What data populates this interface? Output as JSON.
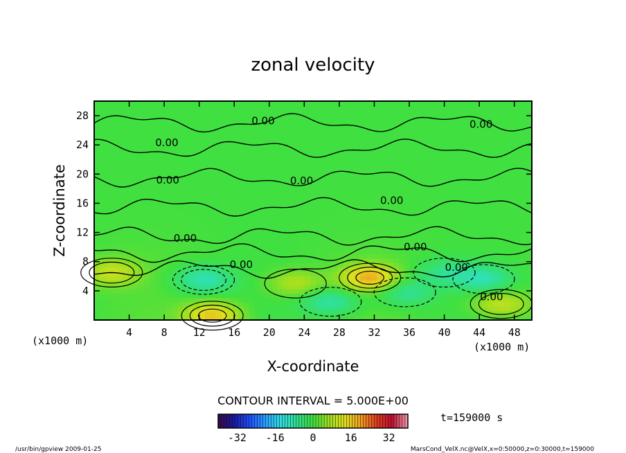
{
  "chart_data": {
    "type": "heatmap",
    "title": "zonal velocity",
    "xlabel": "X-coordinate",
    "ylabel": "Z-coordinate",
    "x_unit": "(x1000 m)",
    "y_unit": "(x1000 m)",
    "x_ticks": [
      4,
      8,
      12,
      16,
      20,
      24,
      28,
      32,
      36,
      40,
      44,
      48
    ],
    "y_ticks": [
      4,
      8,
      12,
      16,
      20,
      24,
      28
    ],
    "xlim": [
      0,
      50
    ],
    "ylim": [
      0,
      30
    ],
    "contour_interval_text": "CONTOUR INTERVAL = 5.000E+00",
    "contour_label": "0.00",
    "contour_labels": [
      {
        "x": 19.3,
        "y": 27.3
      },
      {
        "x": 44.2,
        "y": 26.8
      },
      {
        "x": 8.3,
        "y": 24.3
      },
      {
        "x": 8.4,
        "y": 19.2
      },
      {
        "x": 23.7,
        "y": 19.1
      },
      {
        "x": 34.0,
        "y": 16.4
      },
      {
        "x": 10.4,
        "y": 11.2
      },
      {
        "x": 36.7,
        "y": 10.0
      },
      {
        "x": 16.8,
        "y": 7.6
      },
      {
        "x": 41.4,
        "y": 7.2
      },
      {
        "x": 45.4,
        "y": 3.2
      }
    ],
    "time_label": "t=159000 s",
    "colorbar": {
      "min": -40,
      "max": 40,
      "tick_labels": [
        "-32",
        "-16",
        "0",
        "16",
        "32"
      ],
      "tick_values": [
        -32,
        -16,
        0,
        16,
        32
      ],
      "colors": [
        "#3a0a4a",
        "#1a1aa0",
        "#2050ff",
        "#2aa0ff",
        "#30e0e0",
        "#30e090",
        "#40e040",
        "#a0e020",
        "#e0e020",
        "#f0a020",
        "#e04020",
        "#c01030",
        "#f0a0b0"
      ]
    },
    "features": [
      {
        "kind": "positive",
        "x": 31.5,
        "y": 5.8,
        "value": 18
      },
      {
        "kind": "positive",
        "x": 13.5,
        "y": 0.6,
        "value": 16
      },
      {
        "kind": "positive",
        "x": 2.0,
        "y": 6.5,
        "value": 10
      },
      {
        "kind": "positive",
        "x": 23.0,
        "y": 5.0,
        "value": 8
      },
      {
        "kind": "positive",
        "x": 46.5,
        "y": 2.2,
        "value": 10
      },
      {
        "kind": "negative",
        "x": 12.5,
        "y": 5.5,
        "value": -10
      },
      {
        "kind": "negative",
        "x": 27.0,
        "y": 2.5,
        "value": -9
      },
      {
        "kind": "negative",
        "x": 35.5,
        "y": 3.8,
        "value": -8
      },
      {
        "kind": "negative",
        "x": 44.5,
        "y": 5.6,
        "value": -9
      },
      {
        "kind": "negative",
        "x": 40.0,
        "y": 6.5,
        "value": -6
      }
    ]
  },
  "footer": {
    "left": "/usr/bin/gpview  2009-01-25",
    "right": "MarsCond_VelX.nc@VelX,x=0:50000,z=0:30000,t=159000"
  }
}
